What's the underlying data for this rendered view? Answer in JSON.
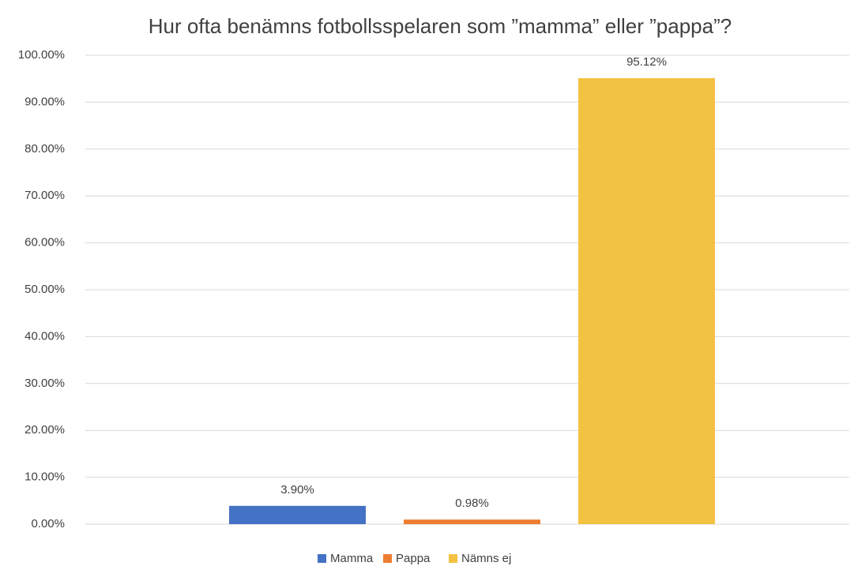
{
  "chart_data": {
    "type": "bar",
    "title": "Hur ofta benämns fotbollsspelaren som ”mamma” eller ”pappa”?",
    "categories": [
      null
    ],
    "series": [
      {
        "name": "Mamma",
        "color": "#4472c4",
        "values": [
          3.9
        ],
        "value_labels": [
          "3.90%"
        ]
      },
      {
        "name": "Pappa",
        "color": "#ed7d31",
        "values": [
          0.98
        ],
        "value_labels": [
          "0.98%"
        ]
      },
      {
        "name": "Nämns ej",
        "color": "#f4c242",
        "values": [
          95.12
        ],
        "value_labels": [
          "95.12%"
        ]
      }
    ],
    "ylim": [
      0,
      100
    ],
    "yticks": [
      {
        "value": 0,
        "label": "0.00%"
      },
      {
        "value": 10,
        "label": "10.00%"
      },
      {
        "value": 20,
        "label": "20.00%"
      },
      {
        "value": 30,
        "label": "30.00%"
      },
      {
        "value": 40,
        "label": "40.00%"
      },
      {
        "value": 50,
        "label": "50.00%"
      },
      {
        "value": 60,
        "label": "60.00%"
      },
      {
        "value": 70,
        "label": "70.00%"
      },
      {
        "value": 80,
        "label": "80.00%"
      },
      {
        "value": 90,
        "label": "90.00%"
      },
      {
        "value": 100,
        "label": "100.00%"
      }
    ],
    "grid": true,
    "legend": "bottom"
  }
}
